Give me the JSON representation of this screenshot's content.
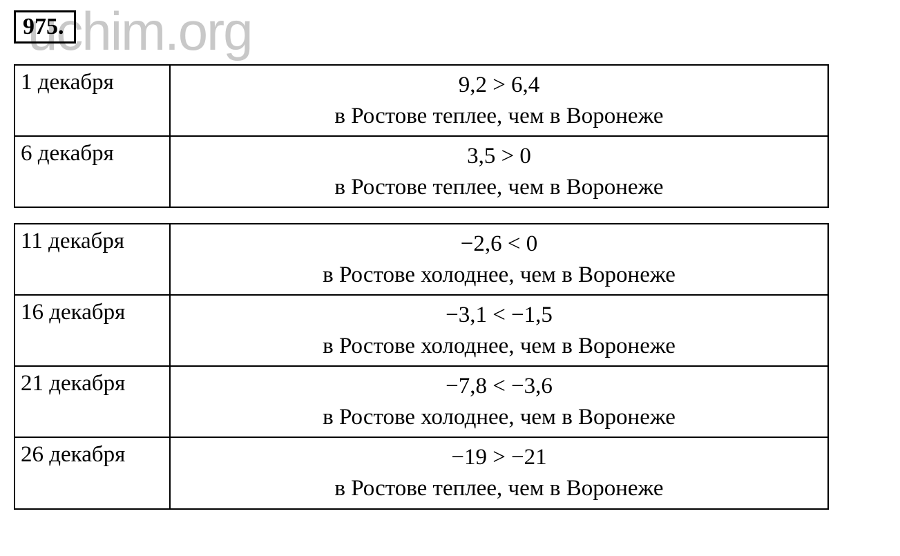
{
  "watermark": "uchim.org",
  "problem_number": "975.",
  "table1": {
    "rows": [
      {
        "date": "1 декабря",
        "inequality": "9,2 > 6,4",
        "description": "в Ростове теплее, чем в Воронеже"
      },
      {
        "date": "6 декабря",
        "inequality": "3,5 > 0",
        "description": "в Ростове теплее, чем в Воронеже"
      }
    ]
  },
  "table2": {
    "rows": [
      {
        "date": "11 декабря",
        "inequality": "−2,6 < 0",
        "description": "в Ростове холоднее, чем в Воронеже"
      },
      {
        "date": "16 декабря",
        "inequality": "−3,1 < −1,5",
        "description": "в Ростове холоднее, чем в Воронеже"
      },
      {
        "date": "21 декабря",
        "inequality": "−7,8 < −3,6",
        "description": "в Ростове холоднее, чем в Воронеже"
      },
      {
        "date": "26 декабря",
        "inequality": "−19 > −21",
        "description": "в Ростове теплее, чем в Воронеже"
      }
    ]
  },
  "colors": {
    "background": "#ffffff",
    "text": "#000000",
    "border": "#000000",
    "watermark": "#c8c8c8"
  },
  "typography": {
    "font_family": "Times New Roman",
    "problem_number_fontsize": 34,
    "cell_fontsize": 33,
    "watermark_fontsize": 78
  }
}
